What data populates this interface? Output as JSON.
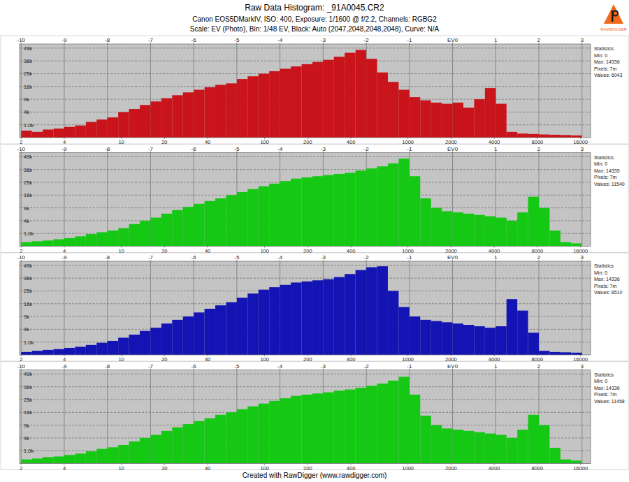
{
  "header": {
    "title": "Raw Data Histogram: _91A0045.CR2",
    "subtitle": [
      "Canon EOS5DMarkIV, ISO: 400, Exposure: 1/1600 @ f/2.2, Channels: RGBG2",
      "Scale: EV (Photo), Bin: 1/48 EV, Black: Auto (2047,2048,2048,2048), Curve: N/A"
    ],
    "logo": "RAWDIGGER"
  },
  "footer": "Created with RawDigger (www.rawdigger.com)",
  "chart_data": [
    {
      "type": "histogram",
      "color": "#c8141a",
      "log": "x",
      "grid": true,
      "bins": [
        2,
        2.378,
        2.828,
        3.364,
        4,
        4.757,
        5.657,
        6.727,
        8,
        9.514,
        11.31,
        13.45,
        16,
        19.03,
        22.63,
        26.91,
        32,
        38.05,
        45.25,
        53.82,
        64,
        76.11,
        90.51,
        107.6,
        128,
        152.2,
        181,
        215.3,
        256,
        304.4,
        362,
        430.5,
        512,
        608.9,
        724.1,
        861.1,
        1024,
        1217.8,
        1448.2,
        1722.2,
        2048,
        2435.5,
        2896.3,
        3444.5,
        4096,
        4871,
        5792.6,
        6888.9,
        8192,
        9742.1,
        11585.2,
        13777.8,
        16384
      ],
      "values": [
        300,
        200,
        400,
        500,
        700,
        900,
        1500,
        2000,
        2500,
        4000,
        5000,
        6500,
        8000,
        9500,
        11000,
        12500,
        14000,
        15500,
        17000,
        18000,
        21000,
        23000,
        25000,
        27000,
        29000,
        31000,
        33000,
        35000,
        37000,
        40000,
        44000,
        47000,
        38000,
        26000,
        19000,
        14000,
        10000,
        8500,
        7500,
        7000,
        7500,
        5500,
        9000,
        15000,
        7000,
        200,
        100,
        80,
        60,
        50,
        40,
        30
      ],
      "xlim": [
        1.95,
        18800
      ],
      "ylim": [
        0,
        53600
      ],
      "xticks": [
        2,
        4,
        10,
        20,
        40,
        100,
        200,
        400,
        1000,
        2000,
        4000,
        8000,
        16000
      ],
      "x2ticks": [
        {
          "value": 2,
          "label": "-10"
        },
        {
          "value": 4,
          "label": "-9"
        },
        {
          "value": 8,
          "label": "-8"
        },
        {
          "value": 16,
          "label": "-7"
        },
        {
          "value": 32,
          "label": "-6"
        },
        {
          "value": 64,
          "label": "-5"
        },
        {
          "value": 128,
          "label": "-4"
        },
        {
          "value": 256,
          "label": "-3"
        },
        {
          "value": 512,
          "label": "-2"
        },
        {
          "value": 1024,
          "label": "-1"
        },
        {
          "value": 2048,
          "label": "EV0"
        },
        {
          "value": 4096,
          "label": "1"
        },
        {
          "value": 8192,
          "label": "2"
        },
        {
          "value": 16384,
          "label": "3"
        }
      ],
      "yticks": [
        {
          "value": 1000,
          "label": "1.0k"
        },
        {
          "value": 4000,
          "label": "4k"
        },
        {
          "value": 9000,
          "label": "9k"
        },
        {
          "value": 16000,
          "label": "16k"
        },
        {
          "value": 25000,
          "label": "25k"
        },
        {
          "value": 36000,
          "label": "36k"
        },
        {
          "value": 49000,
          "label": "49k"
        }
      ],
      "stats": [
        "Statistics",
        "Min: 0",
        "Max: 14336",
        "Pixels: 7m",
        "Values: 6043"
      ]
    },
    {
      "type": "histogram",
      "color": "#14c814",
      "log": "x",
      "grid": true,
      "bins": [
        2,
        2.378,
        2.828,
        3.364,
        4,
        4.757,
        5.657,
        6.727,
        8,
        9.514,
        11.31,
        13.45,
        16,
        19.03,
        22.63,
        26.91,
        32,
        38.05,
        45.25,
        53.82,
        64,
        76.11,
        90.51,
        107.6,
        128,
        152.2,
        181,
        215.3,
        256,
        304.4,
        362,
        430.5,
        512,
        608.9,
        724.1,
        861.1,
        1024,
        1217.8,
        1448.2,
        1722.2,
        2048,
        2435.5,
        2896.3,
        3444.5,
        4096,
        4871,
        5792.6,
        6888.9,
        8192,
        9742.1,
        11585.2,
        13777.8,
        16384
      ],
      "values": [
        100,
        150,
        200,
        300,
        400,
        600,
        900,
        1200,
        1500,
        2000,
        3000,
        4000,
        5000,
        6500,
        8000,
        9500,
        11000,
        12500,
        14000,
        16000,
        18000,
        20000,
        22000,
        24000,
        26000,
        28000,
        29000,
        30000,
        31000,
        32000,
        33000,
        35000,
        37000,
        39000,
        42000,
        47000,
        30000,
        14000,
        9000,
        7500,
        7000,
        6500,
        6000,
        5500,
        5000,
        4000,
        7000,
        15000,
        9000,
        1500,
        100,
        50
      ],
      "xlim": [
        1.95,
        18800
      ],
      "ylim": [
        0,
        53600
      ],
      "xticks": [
        2,
        4,
        10,
        20,
        40,
        100,
        200,
        400,
        1000,
        2000,
        4000,
        8000,
        16000
      ],
      "x2ticks": [
        {
          "value": 2,
          "label": "-10"
        },
        {
          "value": 4,
          "label": "-9"
        },
        {
          "value": 8,
          "label": "-8"
        },
        {
          "value": 16,
          "label": "-7"
        },
        {
          "value": 32,
          "label": "-6"
        },
        {
          "value": 64,
          "label": "-5"
        },
        {
          "value": 128,
          "label": "-4"
        },
        {
          "value": 256,
          "label": "-3"
        },
        {
          "value": 512,
          "label": "-2"
        },
        {
          "value": 1024,
          "label": "-1"
        },
        {
          "value": 2048,
          "label": "EV0"
        },
        {
          "value": 4096,
          "label": "1"
        },
        {
          "value": 8192,
          "label": "2"
        },
        {
          "value": 16384,
          "label": "3"
        }
      ],
      "yticks": [
        {
          "value": 1000,
          "label": "1.0k"
        },
        {
          "value": 4000,
          "label": "4k"
        },
        {
          "value": 9000,
          "label": "9k"
        },
        {
          "value": 16000,
          "label": "16k"
        },
        {
          "value": 25000,
          "label": "25k"
        },
        {
          "value": 36000,
          "label": "36k"
        },
        {
          "value": 49000,
          "label": "49k"
        }
      ],
      "stats": [
        "Statistics",
        "Min: 0",
        "Max: 14335",
        "Pixels: 7m",
        "Values: 11540"
      ]
    },
    {
      "type": "histogram",
      "color": "#1414b4",
      "log": "x",
      "grid": true,
      "bins": [
        2,
        2.378,
        2.828,
        3.364,
        4,
        4.757,
        5.657,
        6.727,
        8,
        9.514,
        11.31,
        13.45,
        16,
        19.03,
        22.63,
        26.91,
        32,
        38.05,
        45.25,
        53.82,
        64,
        76.11,
        90.51,
        107.6,
        128,
        152.2,
        181,
        215.3,
        256,
        304.4,
        362,
        430.5,
        512,
        608.9,
        724.1,
        861.1,
        1024,
        1217.8,
        1448.2,
        1722.2,
        2048,
        2435.5,
        2896.3,
        3444.5,
        4096,
        4871,
        5792.6,
        6888.9,
        8192,
        9742.1,
        11585.2,
        13777.8,
        16384
      ],
      "values": [
        50,
        100,
        150,
        200,
        300,
        400,
        600,
        900,
        1200,
        1800,
        2500,
        3500,
        4500,
        6000,
        7500,
        9000,
        11000,
        13000,
        15000,
        17000,
        20000,
        23000,
        26000,
        28000,
        30000,
        32000,
        33000,
        34000,
        35000,
        37000,
        40000,
        44000,
        47000,
        48000,
        25000,
        14000,
        9000,
        7500,
        7000,
        6500,
        6000,
        5500,
        5000,
        4500,
        5000,
        19000,
        12000,
        3000,
        100,
        50,
        40,
        30
      ],
      "xlim": [
        1.95,
        18800
      ],
      "ylim": [
        0,
        53600
      ],
      "xticks": [
        2,
        4,
        10,
        20,
        40,
        100,
        200,
        400,
        1000,
        2000,
        4000,
        8000,
        16000
      ],
      "x2ticks": [
        {
          "value": 2,
          "label": "-10"
        },
        {
          "value": 4,
          "label": "-9"
        },
        {
          "value": 8,
          "label": "-8"
        },
        {
          "value": 16,
          "label": "-7"
        },
        {
          "value": 32,
          "label": "-6"
        },
        {
          "value": 64,
          "label": "-5"
        },
        {
          "value": 128,
          "label": "-4"
        },
        {
          "value": 256,
          "label": "-3"
        },
        {
          "value": 512,
          "label": "-2"
        },
        {
          "value": 1024,
          "label": "-1"
        },
        {
          "value": 2048,
          "label": "EV0"
        },
        {
          "value": 4096,
          "label": "1"
        },
        {
          "value": 8192,
          "label": "2"
        },
        {
          "value": 16384,
          "label": "3"
        }
      ],
      "yticks": [
        {
          "value": 1000,
          "label": "1.0k"
        },
        {
          "value": 4000,
          "label": "4k"
        },
        {
          "value": 9000,
          "label": "9k"
        },
        {
          "value": 16000,
          "label": "16k"
        },
        {
          "value": 25000,
          "label": "25k"
        },
        {
          "value": 36000,
          "label": "36k"
        },
        {
          "value": 49000,
          "label": "49k"
        }
      ],
      "stats": [
        "Statistics",
        "Min: 0",
        "Max: 14336",
        "Pixels: 7m",
        "Values: 8510"
      ]
    },
    {
      "type": "histogram",
      "color": "#14c814",
      "log": "x",
      "grid": true,
      "bins": [
        2,
        2.378,
        2.828,
        3.364,
        4,
        4.757,
        5.657,
        6.727,
        8,
        9.514,
        11.31,
        13.45,
        16,
        19.03,
        22.63,
        26.91,
        32,
        38.05,
        45.25,
        53.82,
        64,
        76.11,
        90.51,
        107.6,
        128,
        152.2,
        181,
        215.3,
        256,
        304.4,
        362,
        430.5,
        512,
        608.9,
        724.1,
        861.1,
        1024,
        1217.8,
        1448.2,
        1722.2,
        2048,
        2435.5,
        2896.3,
        3444.5,
        4096,
        4871,
        5792.6,
        6888.9,
        8192,
        9742.1,
        11585.2,
        13777.8,
        16384
      ],
      "values": [
        100,
        150,
        250,
        300,
        450,
        600,
        900,
        1300,
        1600,
        2100,
        3000,
        4000,
        5000,
        6500,
        8000,
        9500,
        11000,
        12500,
        14500,
        16000,
        18000,
        20000,
        22000,
        24000,
        26000,
        28000,
        29000,
        30000,
        31000,
        32500,
        33500,
        35000,
        37000,
        39000,
        42000,
        46000,
        29000,
        14000,
        9000,
        7500,
        7000,
        6500,
        6000,
        5500,
        5000,
        4000,
        7000,
        14500,
        9000,
        1500,
        100,
        50
      ],
      "xlim": [
        1.95,
        18800
      ],
      "ylim": [
        0,
        53600
      ],
      "xticks": [
        2,
        4,
        10,
        20,
        40,
        100,
        200,
        400,
        1000,
        2000,
        4000,
        8000,
        16000
      ],
      "x2ticks": [
        {
          "value": 2,
          "label": "-10"
        },
        {
          "value": 4,
          "label": "-9"
        },
        {
          "value": 8,
          "label": "-8"
        },
        {
          "value": 16,
          "label": "-7"
        },
        {
          "value": 32,
          "label": "-6"
        },
        {
          "value": 64,
          "label": "-5"
        },
        {
          "value": 128,
          "label": "-4"
        },
        {
          "value": 256,
          "label": "-3"
        },
        {
          "value": 512,
          "label": "-2"
        },
        {
          "value": 1024,
          "label": "-1"
        },
        {
          "value": 2048,
          "label": "EV0"
        },
        {
          "value": 4096,
          "label": "1"
        },
        {
          "value": 8192,
          "label": "2"
        },
        {
          "value": 16384,
          "label": "3"
        }
      ],
      "yticks": [
        {
          "value": 1000,
          "label": "1.0k"
        },
        {
          "value": 4000,
          "label": "4k"
        },
        {
          "value": 9000,
          "label": "9k"
        },
        {
          "value": 16000,
          "label": "16k"
        },
        {
          "value": 25000,
          "label": "25k"
        },
        {
          "value": 36000,
          "label": "36k"
        },
        {
          "value": 49000,
          "label": "49k"
        }
      ],
      "stats": [
        "Statistics",
        "Min: 0",
        "Max: 14336",
        "Pixels: 7m",
        "Values: 11458"
      ]
    }
  ]
}
